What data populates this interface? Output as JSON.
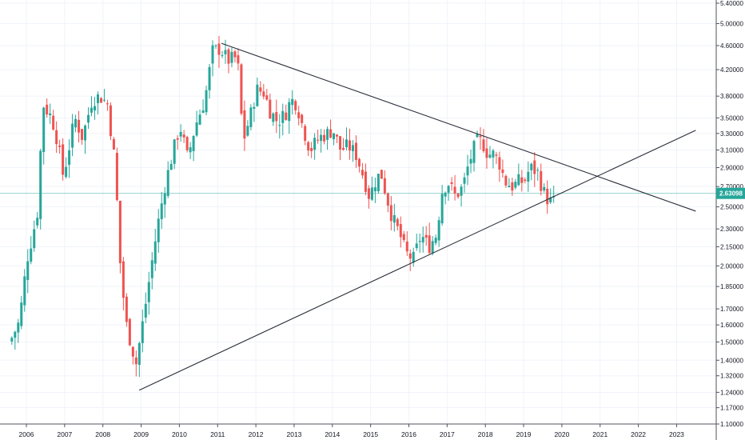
{
  "chart_data": {
    "type": "candlestick",
    "interval": "monthly",
    "scale": "log",
    "grid": true,
    "colors": {
      "up": "#26a69a",
      "down": "#ef5350",
      "trendline": "#2a2e39",
      "price_line": "#26a69a",
      "axis_text": "#131722"
    },
    "x_axis": {
      "ticks": [
        "2006",
        "2007",
        "2008",
        "2009",
        "2010",
        "2011",
        "2012",
        "2013",
        "2014",
        "2015",
        "2016",
        "2017",
        "2018",
        "2019",
        "2020",
        "2021",
        "2022",
        "2023"
      ]
    },
    "y_axis": {
      "ticks": [
        "5.40000",
        "5.00000",
        "4.60000",
        "4.20000",
        "3.80000",
        "3.50000",
        "3.30000",
        "3.10000",
        "2.90000",
        "2.70000",
        "2.50000",
        "2.30000",
        "2.15000",
        "2.00000",
        "1.85000",
        "1.70000",
        "1.60000",
        "1.50000",
        "1.40000",
        "1.32000",
        "1.24000",
        "1.17000",
        "1.10000"
      ],
      "range": [
        1.09,
        5.45
      ]
    },
    "current_price": {
      "value": 2.63098,
      "label": "2.63098"
    },
    "trendlines": [
      {
        "name": "upper-descending",
        "points": [
          [
            2011.1,
            4.64
          ],
          [
            2023.5,
            2.46
          ]
        ]
      },
      {
        "name": "lower-ascending",
        "points": [
          [
            2008.95,
            1.25
          ],
          [
            2023.5,
            3.34
          ]
        ]
      }
    ],
    "keypoints": [
      [
        2005.65,
        1.5
      ],
      [
        2005.9,
        1.62
      ],
      [
        2006.1,
        2.05
      ],
      [
        2006.25,
        2.25
      ],
      [
        2006.4,
        2.5
      ],
      [
        2006.5,
        3.7
      ],
      [
        2006.75,
        3.5
      ],
      [
        2006.9,
        3.2
      ],
      [
        2007.05,
        2.8
      ],
      [
        2007.35,
        3.5
      ],
      [
        2007.55,
        3.25
      ],
      [
        2007.8,
        3.75
      ],
      [
        2008.0,
        3.8
      ],
      [
        2008.2,
        3.7
      ],
      [
        2008.4,
        2.95
      ],
      [
        2008.55,
        1.95
      ],
      [
        2008.7,
        1.6
      ],
      [
        2008.95,
        1.38
      ],
      [
        2009.15,
        1.65
      ],
      [
        2009.35,
        2.0
      ],
      [
        2009.5,
        2.3
      ],
      [
        2009.7,
        2.7
      ],
      [
        2009.9,
        3.05
      ],
      [
        2010.1,
        3.4
      ],
      [
        2010.3,
        3.0
      ],
      [
        2010.5,
        3.4
      ],
      [
        2010.75,
        3.75
      ],
      [
        2010.95,
        4.5
      ],
      [
        2011.15,
        4.55
      ],
      [
        2011.35,
        4.35
      ],
      [
        2011.6,
        4.4
      ],
      [
        2011.75,
        3.2
      ],
      [
        2011.95,
        3.55
      ],
      [
        2012.1,
        3.9
      ],
      [
        2012.3,
        3.85
      ],
      [
        2012.45,
        3.6
      ],
      [
        2012.65,
        3.45
      ],
      [
        2012.85,
        3.55
      ],
      [
        2013.0,
        3.75
      ],
      [
        2013.15,
        3.7
      ],
      [
        2013.3,
        3.4
      ],
      [
        2013.5,
        3.1
      ],
      [
        2013.75,
        3.25
      ],
      [
        2013.95,
        3.3
      ],
      [
        2014.1,
        3.35
      ],
      [
        2014.3,
        3.1
      ],
      [
        2014.5,
        3.15
      ],
      [
        2014.7,
        3.05
      ],
      [
        2014.9,
        2.8
      ],
      [
        2015.05,
        2.6
      ],
      [
        2015.2,
        2.75
      ],
      [
        2015.35,
        2.85
      ],
      [
        2015.5,
        2.6
      ],
      [
        2015.65,
        2.4
      ],
      [
        2015.85,
        2.25
      ],
      [
        2016.0,
        2.1
      ],
      [
        2016.2,
        2.05
      ],
      [
        2016.4,
        2.25
      ],
      [
        2016.6,
        2.15
      ],
      [
        2016.8,
        2.25
      ],
      [
        2016.95,
        2.65
      ],
      [
        2017.1,
        2.75
      ],
      [
        2017.3,
        2.6
      ],
      [
        2017.5,
        2.7
      ],
      [
        2017.65,
        2.95
      ],
      [
        2017.85,
        3.2
      ],
      [
        2018.0,
        3.2
      ],
      [
        2018.15,
        3.05
      ],
      [
        2018.3,
        3.05
      ],
      [
        2018.45,
        2.95
      ],
      [
        2018.6,
        2.75
      ],
      [
        2018.8,
        2.7
      ],
      [
        2018.95,
        2.75
      ],
      [
        2019.1,
        2.75
      ],
      [
        2019.25,
        2.9
      ],
      [
        2019.45,
        2.85
      ],
      [
        2019.6,
        2.65
      ],
      [
        2019.75,
        2.55
      ]
    ]
  }
}
